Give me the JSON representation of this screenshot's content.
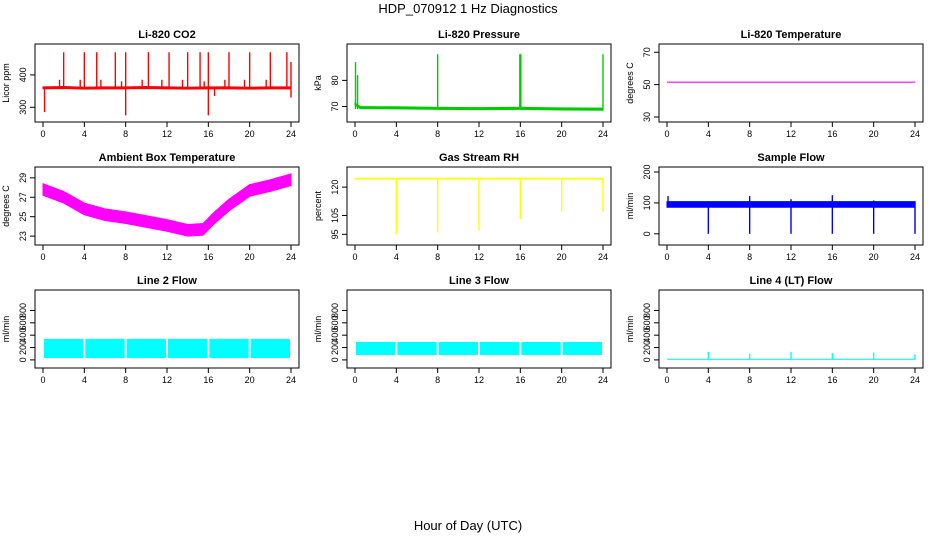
{
  "figure": {
    "title": "HDP_070912  1 Hz Diagnostics",
    "x_title": "Hour of Day (UTC)"
  },
  "chart_data": [
    {
      "type": "line",
      "title": "Li-820 CO2",
      "ylabel": "Licor ppm",
      "color": "#ff0000",
      "xlim": [
        0,
        24
      ],
      "ylim": [
        270,
        480
      ],
      "xticks": [
        0,
        4,
        8,
        12,
        16,
        20,
        24
      ],
      "yticks": [
        300,
        400
      ],
      "baseline": [
        [
          0,
          360
        ],
        [
          2,
          361
        ],
        [
          4,
          359
        ],
        [
          6,
          360
        ],
        [
          8,
          360
        ],
        [
          10,
          361
        ],
        [
          12,
          360
        ],
        [
          14,
          359
        ],
        [
          16,
          360
        ],
        [
          18,
          360
        ],
        [
          20,
          359
        ],
        [
          22,
          360
        ],
        [
          24,
          360
        ]
      ],
      "band": 3,
      "spikes": [
        {
          "x": 0.15,
          "lo": 285,
          "hi": 355
        },
        {
          "x": 1.6,
          "lo": 360,
          "hi": 385
        },
        {
          "x": 2.0,
          "lo": 360,
          "hi": 470
        },
        {
          "x": 3.6,
          "lo": 360,
          "hi": 385
        },
        {
          "x": 4.0,
          "lo": 360,
          "hi": 470
        },
        {
          "x": 5.2,
          "lo": 360,
          "hi": 470
        },
        {
          "x": 5.6,
          "lo": 360,
          "hi": 385
        },
        {
          "x": 7.0,
          "lo": 360,
          "hi": 470
        },
        {
          "x": 7.6,
          "lo": 360,
          "hi": 380
        },
        {
          "x": 8.0,
          "lo": 275,
          "hi": 470
        },
        {
          "x": 9.6,
          "lo": 360,
          "hi": 385
        },
        {
          "x": 10.2,
          "lo": 360,
          "hi": 470
        },
        {
          "x": 11.5,
          "lo": 360,
          "hi": 385
        },
        {
          "x": 12.2,
          "lo": 360,
          "hi": 470
        },
        {
          "x": 13.5,
          "lo": 360,
          "hi": 385
        },
        {
          "x": 14.0,
          "lo": 360,
          "hi": 470
        },
        {
          "x": 15.2,
          "lo": 360,
          "hi": 470
        },
        {
          "x": 15.6,
          "lo": 360,
          "hi": 380
        },
        {
          "x": 16.0,
          "lo": 275,
          "hi": 470
        },
        {
          "x": 16.6,
          "lo": 335,
          "hi": 360
        },
        {
          "x": 17.6,
          "lo": 360,
          "hi": 385
        },
        {
          "x": 18.0,
          "lo": 360,
          "hi": 470
        },
        {
          "x": 19.5,
          "lo": 360,
          "hi": 385
        },
        {
          "x": 20.0,
          "lo": 360,
          "hi": 470
        },
        {
          "x": 21.6,
          "lo": 360,
          "hi": 385
        },
        {
          "x": 22.0,
          "lo": 360,
          "hi": 470
        },
        {
          "x": 23.6,
          "lo": 360,
          "hi": 470
        },
        {
          "x": 24.0,
          "lo": 330,
          "hi": 440
        }
      ]
    },
    {
      "type": "line",
      "title": "Li-820 Pressure",
      "ylabel": "kPa",
      "color": "#00cc00",
      "xlim": [
        0,
        24
      ],
      "ylim": [
        66,
        92
      ],
      "xticks": [
        0,
        4,
        8,
        12,
        16,
        20,
        24
      ],
      "yticks": [
        70,
        80
      ],
      "baseline": [
        [
          0,
          71
        ],
        [
          0.5,
          69.6
        ],
        [
          4,
          69.5
        ],
        [
          8,
          69.3
        ],
        [
          12,
          69.2
        ],
        [
          16,
          69.3
        ],
        [
          20,
          69.1
        ],
        [
          24,
          69.0
        ]
      ],
      "band": 0.4,
      "spikes": [
        {
          "x": 0.05,
          "lo": 69,
          "hi": 87
        },
        {
          "x": 0.25,
          "lo": 69,
          "hi": 82
        },
        {
          "x": 8.0,
          "lo": 69,
          "hi": 90
        },
        {
          "x": 15.95,
          "lo": 69,
          "hi": 90
        },
        {
          "x": 16.05,
          "lo": 69,
          "hi": 90
        },
        {
          "x": 24.0,
          "lo": 69,
          "hi": 90
        }
      ]
    },
    {
      "type": "line",
      "title": "Li-820 Temperature",
      "ylabel": "degrees C",
      "color": "#ff00ff",
      "xlim": [
        0,
        24
      ],
      "ylim": [
        30,
        72
      ],
      "xticks": [
        0,
        4,
        8,
        12,
        16,
        20,
        24
      ],
      "yticks": [
        30,
        50,
        70
      ],
      "baseline": [
        [
          0,
          51.5
        ],
        [
          24,
          51.5
        ]
      ],
      "band": 0,
      "spikes": []
    },
    {
      "type": "line",
      "title": "Ambient Box Temperature",
      "ylabel": "degrees C",
      "color": "#ff00ff",
      "xlim": [
        0,
        24
      ],
      "ylim": [
        22.6,
        29.6
      ],
      "xticks": [
        0,
        4,
        8,
        12,
        16,
        20,
        24
      ],
      "yticks": [
        23,
        25,
        27,
        29
      ],
      "baseline": [
        [
          0,
          27.8
        ],
        [
          2,
          27
        ],
        [
          4,
          25.8
        ],
        [
          6,
          25.2
        ],
        [
          8,
          24.9
        ],
        [
          10,
          24.5
        ],
        [
          12,
          24.1
        ],
        [
          14,
          23.6
        ],
        [
          15.5,
          23.7
        ],
        [
          16.5,
          24.8
        ],
        [
          18,
          26.2
        ],
        [
          20,
          27.7
        ],
        [
          22,
          28.2
        ],
        [
          24,
          28.8
        ]
      ],
      "band": 0.6,
      "spikes": []
    },
    {
      "type": "line",
      "title": "Gas Stream RH",
      "ylabel": "percent",
      "color": "#ffff00",
      "xlim": [
        0,
        24
      ],
      "ylim": [
        92,
        128
      ],
      "xticks": [
        0,
        4,
        8,
        12,
        16,
        20,
        24
      ],
      "yticks": [
        95,
        105,
        120
      ],
      "baseline": [
        [
          0,
          124.5
        ],
        [
          24,
          124.5
        ]
      ],
      "band": 0.2,
      "spikes": [
        {
          "x": 4.0,
          "lo": 95,
          "hi": 124
        },
        {
          "x": 8.0,
          "lo": 96,
          "hi": 124
        },
        {
          "x": 12.0,
          "lo": 97,
          "hi": 124
        },
        {
          "x": 16.0,
          "lo": 103,
          "hi": 124
        },
        {
          "x": 20.0,
          "lo": 107,
          "hi": 124
        },
        {
          "x": 24.0,
          "lo": 107,
          "hi": 124
        }
      ]
    },
    {
      "type": "line",
      "title": "Sample Flow",
      "ylabel": "ml/min",
      "color": "#0000ff",
      "xlim": [
        0,
        24
      ],
      "ylim": [
        -20,
        200
      ],
      "xticks": [
        0,
        4,
        8,
        12,
        16,
        20,
        24
      ],
      "yticks": [
        0,
        100,
        200
      ],
      "baseline": [
        [
          0,
          95
        ],
        [
          24,
          95
        ]
      ],
      "band": 9,
      "spikes": [
        {
          "x": 0.1,
          "lo": 85,
          "hi": 122
        },
        {
          "x": 4.0,
          "lo": 0,
          "hi": 105
        },
        {
          "x": 8.0,
          "lo": 0,
          "hi": 122
        },
        {
          "x": 12.0,
          "lo": 0,
          "hi": 112
        },
        {
          "x": 16.0,
          "lo": 0,
          "hi": 125
        },
        {
          "x": 20.0,
          "lo": 0,
          "hi": 108
        },
        {
          "x": 24.0,
          "lo": 0,
          "hi": 105
        }
      ]
    },
    {
      "type": "area",
      "title": "Line 2 Flow",
      "ylabel": "ml/min",
      "color": "#00ffff",
      "xlim": [
        0,
        24
      ],
      "ylim": [
        -50,
        1050
      ],
      "xticks": [
        0,
        4,
        8,
        12,
        16,
        20,
        24
      ],
      "yticks": [
        0,
        200,
        400,
        600,
        800
      ],
      "bands": [
        [
          0.1,
          3.9,
          30,
          340
        ],
        [
          4.1,
          7.9,
          30,
          340
        ],
        [
          8.1,
          11.9,
          30,
          340
        ],
        [
          12.1,
          15.9,
          30,
          340
        ],
        [
          16.1,
          19.9,
          30,
          340
        ],
        [
          20.1,
          23.9,
          30,
          340
        ]
      ],
      "baseline": [],
      "spikes": []
    },
    {
      "type": "area",
      "title": "Line 3 Flow",
      "ylabel": "ml/min",
      "color": "#00ffff",
      "xlim": [
        0,
        24
      ],
      "ylim": [
        -50,
        1050
      ],
      "xticks": [
        0,
        4,
        8,
        12,
        16,
        20,
        24
      ],
      "yticks": [
        0,
        200,
        400,
        600,
        800
      ],
      "bands": [
        [
          0.1,
          3.9,
          80,
          290
        ],
        [
          4.1,
          7.9,
          80,
          290
        ],
        [
          8.1,
          11.9,
          80,
          290
        ],
        [
          12.1,
          15.9,
          80,
          290
        ],
        [
          16.1,
          19.9,
          80,
          290
        ],
        [
          20.1,
          23.9,
          80,
          290
        ]
      ],
      "baseline": [],
      "spikes": []
    },
    {
      "type": "line",
      "title": "Line 4 (LT) Flow",
      "ylabel": "ml/min",
      "color": "#00ffff",
      "xlim": [
        0,
        24
      ],
      "ylim": [
        -50,
        1050
      ],
      "xticks": [
        0,
        4,
        8,
        12,
        16,
        20,
        24
      ],
      "yticks": [
        0,
        200,
        400,
        600,
        800
      ],
      "baseline": [
        [
          0,
          10
        ],
        [
          24,
          10
        ]
      ],
      "band": 0,
      "spikes": [
        {
          "x": 4.0,
          "lo": 10,
          "hi": 130
        },
        {
          "x": 8.0,
          "lo": 10,
          "hi": 100
        },
        {
          "x": 12.0,
          "lo": 10,
          "hi": 130
        },
        {
          "x": 16.0,
          "lo": 10,
          "hi": 110
        },
        {
          "x": 20.0,
          "lo": 10,
          "hi": 120
        },
        {
          "x": 24.0,
          "lo": 10,
          "hi": 90
        }
      ]
    }
  ]
}
